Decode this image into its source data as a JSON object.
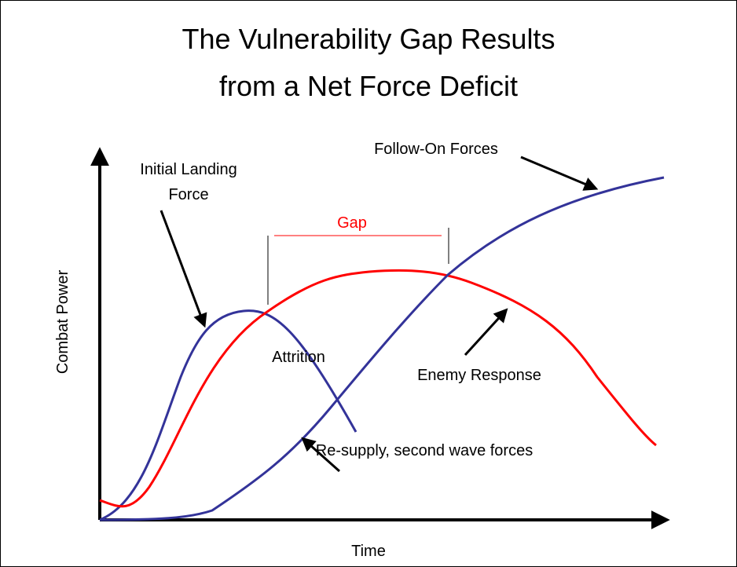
{
  "title": {
    "lines": [
      "The Vulnerability Gap Results",
      "from a Net Force Deficit"
    ]
  },
  "axes": {
    "y_label": "Combat Power",
    "x_label": "Time"
  },
  "labels": {
    "initial_landing": [
      "Initial Landing",
      "Force"
    ],
    "follow_on": "Follow-On Forces",
    "gap": "Gap",
    "attrition": "Attrition",
    "enemy_response": "Enemy Response",
    "resupply": "Re-supply, second wave forces"
  }
}
